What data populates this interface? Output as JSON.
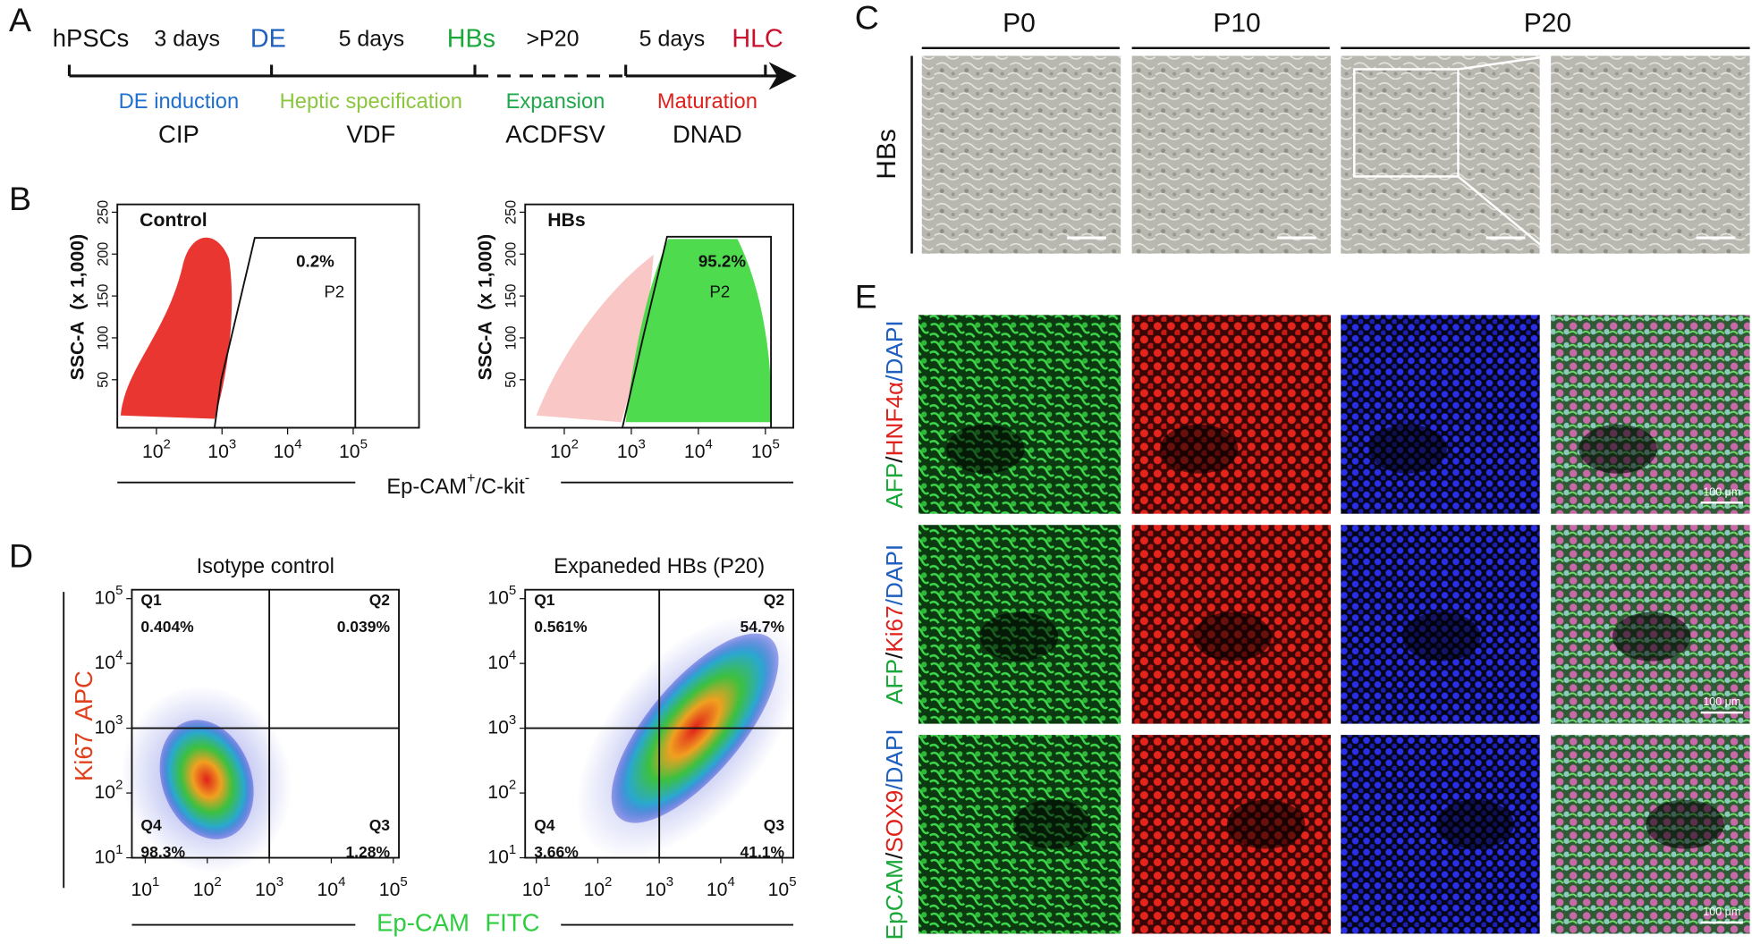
{
  "panel_a": {
    "label": "A",
    "top_labels": [
      "hPSCs",
      "3 days",
      "DE",
      "5 days",
      "HBs",
      ">P20",
      "5 days",
      "HLC"
    ],
    "stages": [
      {
        "name": "DE induction",
        "medium": "CIP"
      },
      {
        "name": "Heptic specification",
        "medium": "VDF"
      },
      {
        "name": "Expansion",
        "medium": "ACDFSV"
      },
      {
        "name": "Maturation",
        "medium": "DNAD"
      }
    ]
  },
  "panel_b": {
    "label": "B",
    "y_axis_label": "SSC-A",
    "y_axis_unit": "(x 1,000)",
    "yticks": [
      50,
      100,
      150,
      200,
      250
    ],
    "tick_base": "10",
    "xtick_exponents": [
      2,
      3,
      4,
      5
    ],
    "x_axis_label": {
      "marker": "Ep-CAM",
      "marker_sign": "+",
      "second_marker": "/C-kit",
      "second_sign": "-"
    },
    "plots": [
      {
        "title": "Control",
        "gate_percent": "0.2%",
        "gate_name": "P2"
      },
      {
        "title": "HBs",
        "gate_percent": "95.2%",
        "gate_name": "P2"
      }
    ]
  },
  "panel_c": {
    "label": "C",
    "columns": [
      "P0",
      "P10",
      "P20"
    ],
    "row_label": "HBs"
  },
  "panel_d": {
    "label": "D",
    "tick_base": "10",
    "tick_exponents": [
      1,
      2,
      3,
      4,
      5
    ],
    "y_axis_label": [
      "Ki67",
      "APC"
    ],
    "x_axis_label": [
      "Ep-CAM",
      "FITC"
    ],
    "plots": [
      {
        "title": "Isotype control",
        "quadrants": [
          {
            "name": "Q1",
            "percent": "0.404%"
          },
          {
            "name": "Q2",
            "percent": "0.039%"
          },
          {
            "name": "Q3",
            "percent": "1.28%"
          },
          {
            "name": "Q4",
            "percent": "98.3%"
          }
        ]
      },
      {
        "title": "Expaneded HBs (P20)",
        "quadrants": [
          {
            "name": "Q1",
            "percent": "0.561%"
          },
          {
            "name": "Q2",
            "percent": "54.7%"
          },
          {
            "name": "Q3",
            "percent": "41.1%"
          },
          {
            "name": "Q4",
            "percent": "3.66%"
          }
        ]
      }
    ]
  },
  "panel_e": {
    "label": "E",
    "scale_bar": "100 μm",
    "rows": [
      {
        "stain": [
          {
            "text": "AFP",
            "color": "#1aa83a"
          },
          {
            "text": "/",
            "color": "#111111"
          },
          {
            "text": "HNF4α",
            "color": "#e0201b"
          },
          {
            "text": "/DAPI",
            "color": "#1f5fbf"
          }
        ]
      },
      {
        "stain": [
          {
            "text": "AFP",
            "color": "#1aa83a"
          },
          {
            "text": "/",
            "color": "#111111"
          },
          {
            "text": "Ki67",
            "color": "#e0201b"
          },
          {
            "text": "/DAPI",
            "color": "#1f5fbf"
          }
        ]
      },
      {
        "stain": [
          {
            "text": "EpCAM",
            "color": "#1aa83a"
          },
          {
            "text": "/",
            "color": "#111111"
          },
          {
            "text": "SOX9",
            "color": "#e0201b"
          },
          {
            "text": "/DAPI",
            "color": "#1f5fbf"
          }
        ]
      }
    ]
  }
}
